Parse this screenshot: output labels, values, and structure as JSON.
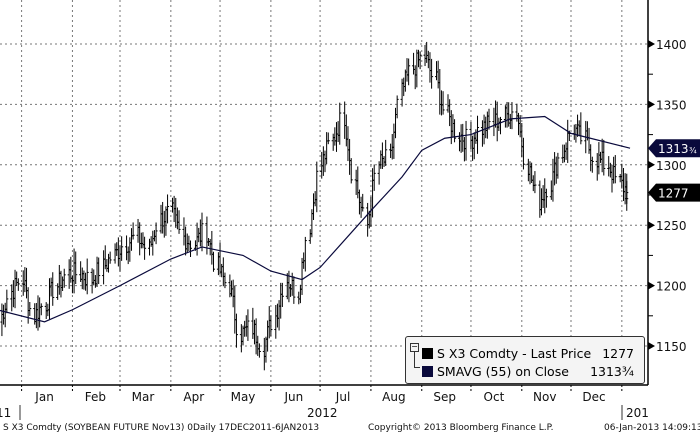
{
  "chart_data": {
    "type": "ohlc-line",
    "title": "S X3 Comdty (SOYBEAN FUTURE Nov13) Daily 17DEC2011-6JAN2013",
    "ylim": [
      1118,
      1436
    ],
    "yticks": [
      1150,
      1200,
      1250,
      1300,
      1350,
      1400
    ],
    "month_labels": [
      "Jan",
      "Feb",
      "Mar",
      "Apr",
      "May",
      "Jun",
      "Jul",
      "Aug",
      "Sep",
      "Oct",
      "Nov",
      "Dec"
    ],
    "year_labels": [
      "11",
      "2012",
      "201"
    ],
    "grid": true,
    "price_weekly_close": {
      "start": "2011-12-19",
      "values": [
        1170,
        1195,
        1205,
        1175,
        1185,
        1200,
        1210,
        1210,
        1205,
        1215,
        1225,
        1235,
        1240,
        1230,
        1255,
        1260,
        1240,
        1235,
        1245,
        1215,
        1200,
        1160,
        1165,
        1150,
        1175,
        1205,
        1195,
        1250,
        1300,
        1320,
        1340,
        1285,
        1250,
        1300,
        1305,
        1360,
        1380,
        1390,
        1370,
        1340,
        1325,
        1320,
        1330,
        1335,
        1340,
        1345,
        1300,
        1270,
        1285,
        1310,
        1330,
        1320,
        1305,
        1300,
        1285,
        1277
      ]
    },
    "sma55_monthly": {
      "dates": [
        "2011-12-17",
        "2012-01-15",
        "2012-02-01",
        "2012-03-01",
        "2012-04-01",
        "2012-04-20",
        "2012-05-15",
        "2012-06-01",
        "2012-06-20",
        "2012-07-01",
        "2012-08-01",
        "2012-08-20",
        "2012-09-01",
        "2012-09-15",
        "2012-10-01",
        "2012-10-25",
        "2012-11-15",
        "2012-12-01",
        "2013-01-06"
      ],
      "values": [
        1180,
        1170,
        1180,
        1200,
        1222,
        1232,
        1225,
        1212,
        1205,
        1215,
        1262,
        1290,
        1312,
        1322,
        1325,
        1338,
        1340,
        1326,
        1313.75
      ]
    },
    "last_price": "1277",
    "sma_last": "1313",
    "sma_last_frac": "3/4",
    "series": [
      {
        "name": "S X3 Comdty - Last Price",
        "value": "1277",
        "color": "#000000"
      },
      {
        "name": "SMAVG (55) on Close",
        "value": "1313",
        "frac": "¾",
        "color": "#0a0a3c"
      }
    ]
  },
  "footer": {
    "left": "S X3 Comdty (SOYBEAN FUTURE    Nov13) 0Daily 17DEC2011-6JAN2013",
    "center": "Copyright© 2013 Bloomberg Finance L.P.",
    "right": "06-Jan-2013 14:09:13"
  }
}
